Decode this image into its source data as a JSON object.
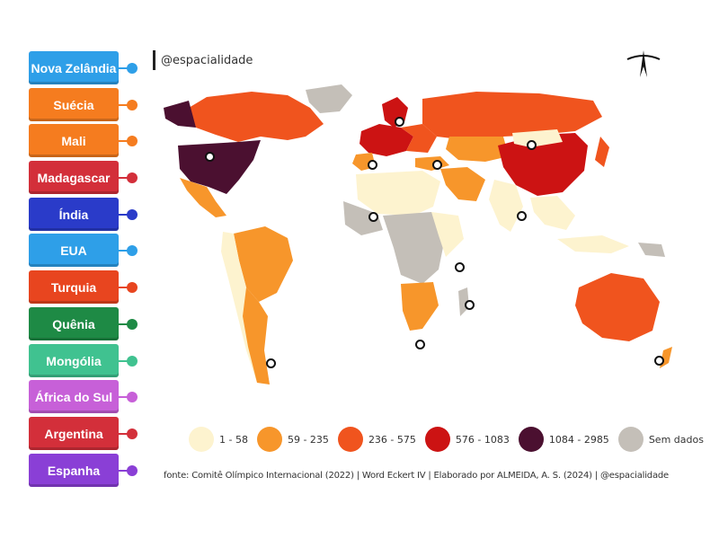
{
  "brand": "@espacialidade",
  "labels": [
    {
      "text": "Nova Zelândia",
      "color": "#2e9fe8"
    },
    {
      "text": "Suécia",
      "color": "#f57c1f"
    },
    {
      "text": "Mali",
      "color": "#f57c1f"
    },
    {
      "text": "Madagascar",
      "color": "#d32f3a"
    },
    {
      "text": "Índia",
      "color": "#2a3bc9"
    },
    {
      "text": "EUA",
      "color": "#2e9fe8"
    },
    {
      "text": "Turquia",
      "color": "#e8451f"
    },
    {
      "text": "Quênia",
      "color": "#1e8a45"
    },
    {
      "text": "Mongólia",
      "color": "#40c290"
    },
    {
      "text": "África do Sul",
      "color": "#c760d8"
    },
    {
      "text": "Argentina",
      "color": "#d32f3a"
    },
    {
      "text": "Espanha",
      "color": "#8a3fd6"
    }
  ],
  "legend": [
    {
      "label": "1 - 58",
      "color": "#fdf3cf"
    },
    {
      "label": "59 - 235",
      "color": "#f7962b"
    },
    {
      "label": "236 - 575",
      "color": "#f0541e"
    },
    {
      "label": "576 - 1083",
      "color": "#cc1313"
    },
    {
      "label": "1084 - 2985",
      "color": "#4b1030"
    },
    {
      "label": "Sem dados",
      "color": "#c4bfb8"
    }
  ],
  "source": "fonte: Comitê Olímpico Internacional (2022) | Word Eckert IV | Elaborado por ALMEIDA, A. S. (2024) | @espacialidade"
}
